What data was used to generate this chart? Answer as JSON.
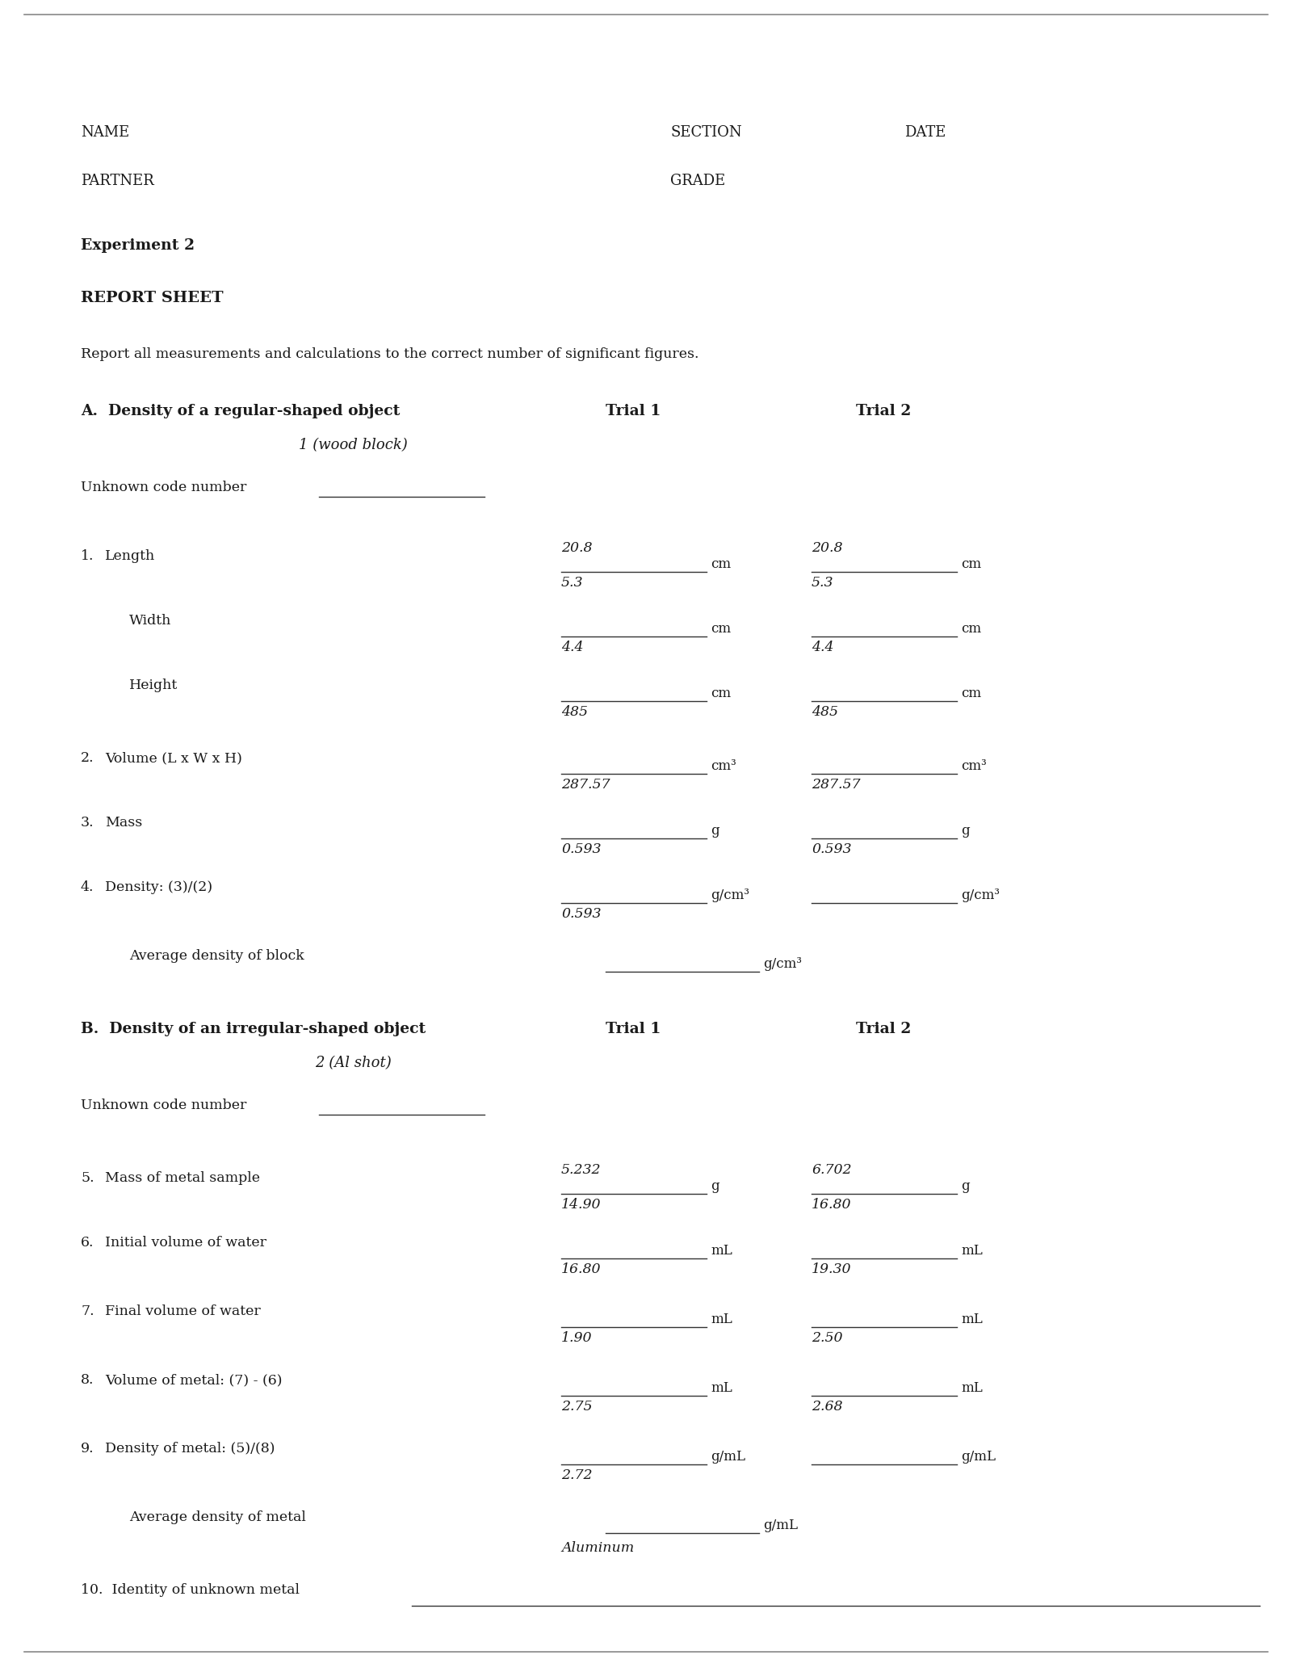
{
  "bg_color": "#ffffff",
  "text_color": "#1a1a1a",
  "page_width": 16.0,
  "page_height": 20.7,
  "header": {
    "name_label": "NAME",
    "section_label": "SECTION",
    "date_label": "DATE",
    "partner_label": "PARTNER",
    "grade_label": "GRADE"
  },
  "title1": "Experiment 2",
  "title2": "REPORT SHEET",
  "intro": "Report all measurements and calculations to the correct number of significant figures.",
  "section_a": {
    "heading": "A.  Density of a regular-shaped object",
    "subheading": "1 (wood block)",
    "trial1_label": "Trial 1",
    "trial2_label": "Trial 2",
    "unknown_label": "Unknown code number"
  },
  "section_b": {
    "heading": "B.  Density of an irregular-shaped object",
    "subheading": "2 (Al shot)",
    "trial1_label": "Trial 1",
    "trial2_label": "Trial 2",
    "unknown_label": "Unknown code number",
    "avg_label": "Average density of metal",
    "avg_unit": "g/mL",
    "avg_below": "Aluminum",
    "identity_label": "10.  Identity of unknown metal"
  },
  "avg_a_label": "Average density of block",
  "avg_a_unit": "g/cm³",
  "row_a_numbers": [
    "1.",
    "",
    "",
    "2.",
    "3.",
    "4."
  ],
  "row_a_labels": [
    "Length",
    "Width",
    "Height",
    "Volume (L x W x H)",
    "Mass",
    "Density: (3)/(2)"
  ],
  "row_a_units": [
    "cm",
    "cm",
    "cm",
    "cm³",
    "g",
    "g/cm³"
  ],
  "row_a_t1_above": [
    "20.8",
    "",
    "",
    "",
    "",
    ""
  ],
  "row_a_t1_below": [
    "5.3",
    "4.4",
    "485",
    "287.57",
    "0.593",
    "0.593"
  ],
  "row_a_t2_above": [
    "20.8",
    "",
    "",
    "",
    "",
    ""
  ],
  "row_a_t2_below": [
    "5.3",
    "4.4",
    "485",
    "287.57",
    "0.593",
    ""
  ],
  "row_b_numbers": [
    "5.",
    "6.",
    "7.",
    "8.",
    "9."
  ],
  "row_b_labels": [
    "Mass of metal sample",
    "Initial volume of water",
    "Final volume of water",
    "Volume of metal: (7) - (6)",
    "Density of metal: (5)/(8)"
  ],
  "row_b_units": [
    "g",
    "mL",
    "mL",
    "mL",
    "g/mL"
  ],
  "row_b_t1_above": [
    "5.232",
    "",
    "",
    "",
    ""
  ],
  "row_b_t1_below": [
    "14.90",
    "16.80",
    "1.90",
    "2.75",
    "2.72"
  ],
  "row_b_t2_above": [
    "6.702",
    "",
    "",
    "",
    ""
  ],
  "row_b_t2_below": [
    "16.80",
    "19.30",
    "2.50",
    "2.68",
    ""
  ]
}
